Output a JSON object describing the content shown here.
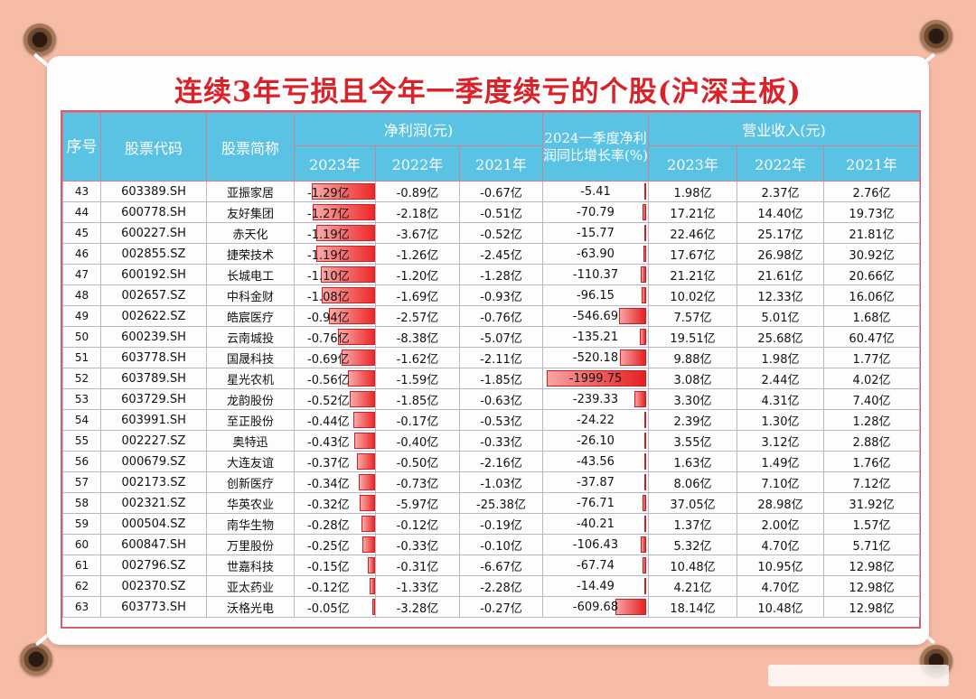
{
  "title": "连续3年亏损且今年一季度续亏的个股(沪深主板)",
  "headers": {
    "seq": "序号",
    "code": "股票代码",
    "name": "股票简称",
    "net_profit": "净利润(元)",
    "growth": "2024一季度净利润同比增长率(%)",
    "revenue": "营业收入(元)",
    "y2023": "2023年",
    "y2022": "2022年",
    "y2021": "2021年"
  },
  "rows": [
    {
      "seq": "43",
      "code": "603389.SH",
      "name": "亚振家居",
      "np2023": "-1.29亿",
      "np2022": "-0.89亿",
      "np2021": "-0.67亿",
      "growth": "-5.41",
      "rev2023": "1.98亿",
      "rev2022": "2.37亿",
      "rev2021": "2.76亿",
      "np_bar": 1.29,
      "g_bar": 5.41
    },
    {
      "seq": "44",
      "code": "600778.SH",
      "name": "友好集团",
      "np2023": "-1.27亿",
      "np2022": "-2.18亿",
      "np2021": "-0.51亿",
      "growth": "-70.79",
      "rev2023": "17.21亿",
      "rev2022": "14.40亿",
      "rev2021": "19.73亿",
      "np_bar": 1.27,
      "g_bar": 70.79
    },
    {
      "seq": "45",
      "code": "600227.SH",
      "name": "赤天化",
      "np2023": "-1.19亿",
      "np2022": "-3.67亿",
      "np2021": "-0.52亿",
      "growth": "-15.77",
      "rev2023": "22.46亿",
      "rev2022": "25.17亿",
      "rev2021": "21.81亿",
      "np_bar": 1.19,
      "g_bar": 15.77
    },
    {
      "seq": "46",
      "code": "002855.SZ",
      "name": "捷荣技术",
      "np2023": "-1.19亿",
      "np2022": "-1.26亿",
      "np2021": "-2.45亿",
      "growth": "-63.90",
      "rev2023": "17.67亿",
      "rev2022": "26.98亿",
      "rev2021": "30.92亿",
      "np_bar": 1.19,
      "g_bar": 63.9
    },
    {
      "seq": "47",
      "code": "600192.SH",
      "name": "长城电工",
      "np2023": "-1.10亿",
      "np2022": "-1.20亿",
      "np2021": "-1.28亿",
      "growth": "-110.37",
      "rev2023": "21.21亿",
      "rev2022": "21.61亿",
      "rev2021": "20.66亿",
      "np_bar": 1.1,
      "g_bar": 110.37
    },
    {
      "seq": "48",
      "code": "002657.SZ",
      "name": "中科金财",
      "np2023": "-1.08亿",
      "np2022": "-1.69亿",
      "np2021": "-0.93亿",
      "growth": "-96.15",
      "rev2023": "10.02亿",
      "rev2022": "12.33亿",
      "rev2021": "16.06亿",
      "np_bar": 1.08,
      "g_bar": 96.15
    },
    {
      "seq": "49",
      "code": "002622.SZ",
      "name": "皓宸医疗",
      "np2023": "-0.94亿",
      "np2022": "-2.57亿",
      "np2021": "-0.76亿",
      "growth": "-546.69",
      "rev2023": "7.57亿",
      "rev2022": "5.01亿",
      "rev2021": "1.68亿",
      "np_bar": 0.94,
      "g_bar": 546.69
    },
    {
      "seq": "50",
      "code": "600239.SH",
      "name": "云南城投",
      "np2023": "-0.76亿",
      "np2022": "-8.38亿",
      "np2021": "-5.07亿",
      "growth": "-135.21",
      "rev2023": "19.51亿",
      "rev2022": "25.68亿",
      "rev2021": "60.47亿",
      "np_bar": 0.76,
      "g_bar": 135.21
    },
    {
      "seq": "51",
      "code": "603778.SH",
      "name": "国晟科技",
      "np2023": "-0.69亿",
      "np2022": "-1.62亿",
      "np2021": "-2.11亿",
      "growth": "-520.18",
      "rev2023": "9.88亿",
      "rev2022": "1.98亿",
      "rev2021": "1.77亿",
      "np_bar": 0.69,
      "g_bar": 520.18
    },
    {
      "seq": "52",
      "code": "603789.SH",
      "name": "星光农机",
      "np2023": "-0.56亿",
      "np2022": "-1.59亿",
      "np2021": "-1.85亿",
      "growth": "-1999.75",
      "rev2023": "3.08亿",
      "rev2022": "2.44亿",
      "rev2021": "4.02亿",
      "np_bar": 0.56,
      "g_bar": 1999.75
    },
    {
      "seq": "53",
      "code": "603729.SH",
      "name": "龙韵股份",
      "np2023": "-0.52亿",
      "np2022": "-1.85亿",
      "np2021": "-0.63亿",
      "growth": "-239.33",
      "rev2023": "3.30亿",
      "rev2022": "4.31亿",
      "rev2021": "7.40亿",
      "np_bar": 0.52,
      "g_bar": 239.33
    },
    {
      "seq": "54",
      "code": "603991.SH",
      "name": "至正股份",
      "np2023": "-0.44亿",
      "np2022": "-0.17亿",
      "np2021": "-0.53亿",
      "growth": "-24.22",
      "rev2023": "2.39亿",
      "rev2022": "1.30亿",
      "rev2021": "1.28亿",
      "np_bar": 0.44,
      "g_bar": 24.22
    },
    {
      "seq": "55",
      "code": "002227.SZ",
      "name": "奥特迅",
      "np2023": "-0.43亿",
      "np2022": "-0.40亿",
      "np2021": "-0.33亿",
      "growth": "-26.10",
      "rev2023": "3.55亿",
      "rev2022": "3.12亿",
      "rev2021": "2.88亿",
      "np_bar": 0.43,
      "g_bar": 26.1
    },
    {
      "seq": "56",
      "code": "000679.SZ",
      "name": "大连友谊",
      "np2023": "-0.37亿",
      "np2022": "-0.50亿",
      "np2021": "-2.16亿",
      "growth": "-43.56",
      "rev2023": "1.63亿",
      "rev2022": "1.49亿",
      "rev2021": "1.76亿",
      "np_bar": 0.37,
      "g_bar": 43.56
    },
    {
      "seq": "57",
      "code": "002173.SZ",
      "name": "创新医疗",
      "np2023": "-0.34亿",
      "np2022": "-0.73亿",
      "np2021": "-1.03亿",
      "growth": "-37.87",
      "rev2023": "8.06亿",
      "rev2022": "7.10亿",
      "rev2021": "7.12亿",
      "np_bar": 0.34,
      "g_bar": 37.87
    },
    {
      "seq": "58",
      "code": "002321.SZ",
      "name": "华英农业",
      "np2023": "-0.32亿",
      "np2022": "-5.97亿",
      "np2021": "-25.38亿",
      "growth": "-76.71",
      "rev2023": "37.05亿",
      "rev2022": "28.98亿",
      "rev2021": "31.92亿",
      "np_bar": 0.32,
      "g_bar": 76.71
    },
    {
      "seq": "59",
      "code": "000504.SZ",
      "name": "南华生物",
      "np2023": "-0.28亿",
      "np2022": "-0.12亿",
      "np2021": "-0.19亿",
      "growth": "-40.21",
      "rev2023": "1.37亿",
      "rev2022": "2.00亿",
      "rev2021": "1.57亿",
      "np_bar": 0.28,
      "g_bar": 40.21
    },
    {
      "seq": "60",
      "code": "600847.SH",
      "name": "万里股份",
      "np2023": "-0.25亿",
      "np2022": "-0.33亿",
      "np2021": "-0.10亿",
      "growth": "-106.43",
      "rev2023": "5.32亿",
      "rev2022": "4.70亿",
      "rev2021": "5.71亿",
      "np_bar": 0.25,
      "g_bar": 106.43
    },
    {
      "seq": "61",
      "code": "002796.SZ",
      "name": "世嘉科技",
      "np2023": "-0.15亿",
      "np2022": "-0.31亿",
      "np2021": "-6.67亿",
      "growth": "-67.74",
      "rev2023": "10.48亿",
      "rev2022": "10.95亿",
      "rev2021": "12.98亿",
      "np_bar": 0.15,
      "g_bar": 67.74
    },
    {
      "seq": "62",
      "code": "002370.SZ",
      "name": "亚太药业",
      "np2023": "-0.12亿",
      "np2022": "-1.33亿",
      "np2021": "-2.28亿",
      "growth": "-14.49",
      "rev2023": "4.21亿",
      "rev2022": "4.70亿",
      "rev2021": "12.98亿",
      "np_bar": 0.12,
      "g_bar": 14.49
    },
    {
      "seq": "63",
      "code": "603773.SH",
      "name": "沃格光电",
      "np2023": "-0.05亿",
      "np2022": "-3.28亿",
      "np2021": "-0.27亿",
      "growth": "-609.68",
      "rev2023": "18.14亿",
      "rev2022": "10.48亿",
      "rev2021": "12.98亿",
      "np_bar": 0.05,
      "g_bar": 609.68
    }
  ],
  "colors": {
    "title": "#d8232a",
    "header_bg": "#5ac2e3",
    "bar": "#ee2828",
    "background": "#f6bca6"
  }
}
